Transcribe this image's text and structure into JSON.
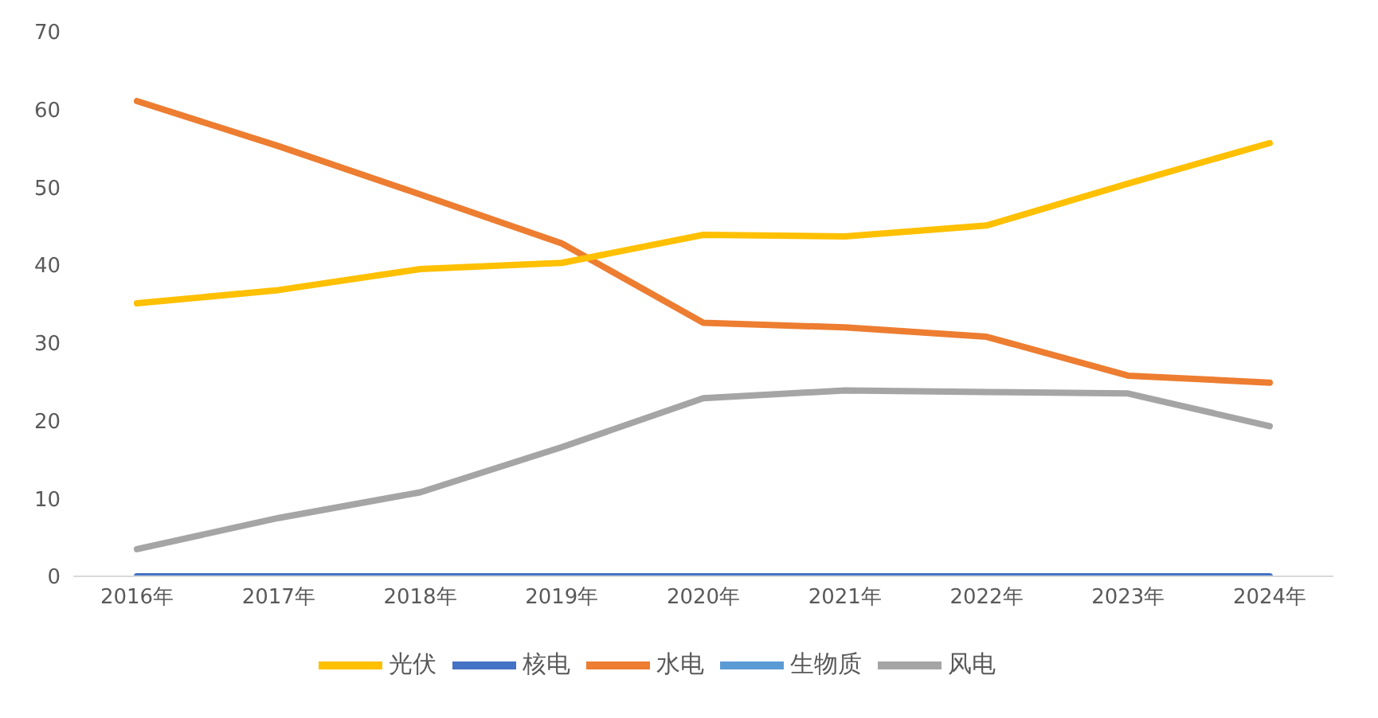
{
  "chart_data": {
    "type": "line",
    "categories": [
      "2016年",
      "2017年",
      "2018年",
      "2019年",
      "2020年",
      "2021年",
      "2022年",
      "2023年",
      "2024年"
    ],
    "series": [
      {
        "name": "生物质",
        "color": "#5b9bd5",
        "values": [
          null,
          null,
          null,
          null,
          null,
          null,
          null,
          null,
          null
        ]
      },
      {
        "name": "水电",
        "color": "#ed7d31",
        "values": [
          61.1,
          55.3,
          49.1,
          42.8,
          32.6,
          32.0,
          30.8,
          25.8,
          24.9
        ]
      },
      {
        "name": "风电",
        "color": "#a5a5a5",
        "values": [
          3.5,
          7.5,
          10.8,
          16.6,
          22.9,
          23.9,
          23.7,
          23.5,
          19.3
        ]
      },
      {
        "name": "光伏",
        "color": "#ffc000",
        "values": [
          35.1,
          36.8,
          39.5,
          40.3,
          43.9,
          43.7,
          45.1,
          50.5,
          55.7
        ]
      },
      {
        "name": "核电",
        "color": "#4472c4",
        "values": [
          0,
          0,
          0,
          0,
          0,
          0,
          0,
          0,
          0
        ]
      }
    ],
    "ylim": [
      0,
      70
    ],
    "yticks": [
      0,
      10,
      20,
      30,
      40,
      50,
      60,
      70
    ],
    "grid": false,
    "legend": "bottom",
    "marker": "none",
    "line_style": "solid"
  }
}
